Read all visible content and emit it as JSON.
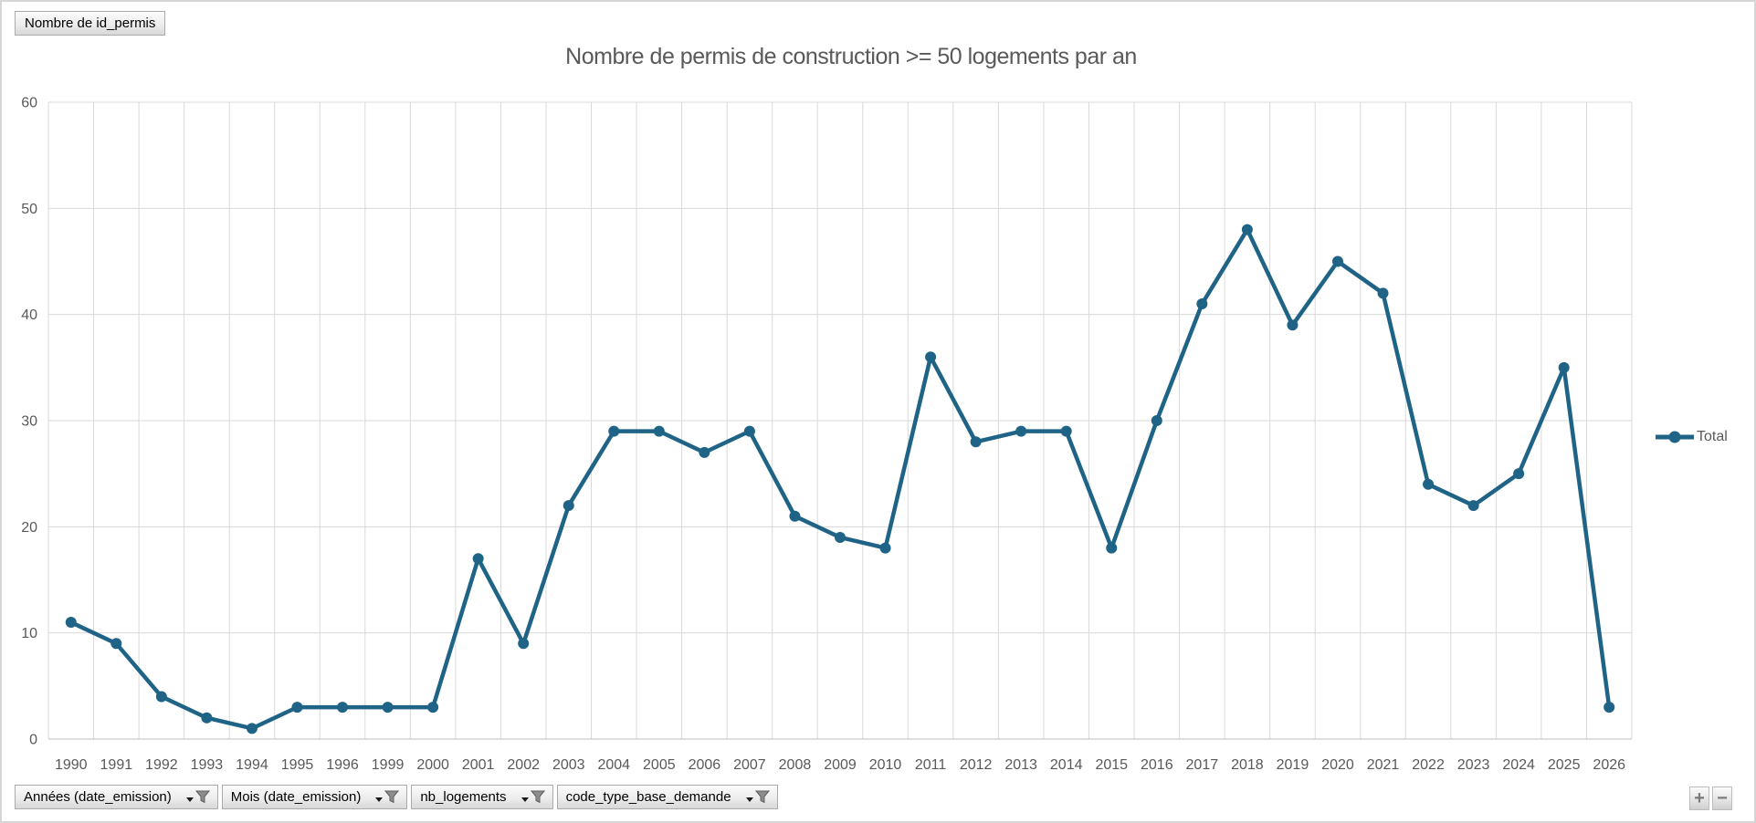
{
  "value_field_button": {
    "label": "Nombre de id_permis"
  },
  "chart": {
    "title": "Nombre de permis de construction >= 50 logements par an"
  },
  "legend": {
    "label": "Total"
  },
  "filter_buttons": [
    {
      "label": "Années (date_emission)",
      "icon": "filter-funnel"
    },
    {
      "label": "Mois (date_emission)",
      "icon": "filter-funnel"
    },
    {
      "label": "nb_logements",
      "icon": "filter-funnel"
    },
    {
      "label": "code_type_base_demande",
      "icon": "filter-funnel"
    }
  ],
  "zoom_controls": {
    "expand_label": "+",
    "collapse_label": "−"
  },
  "chart_data": {
    "type": "line",
    "title": "Nombre de permis de construction >= 50 logements par an",
    "categories": [
      "1990",
      "1991",
      "1992",
      "1993",
      "1994",
      "1995",
      "1996",
      "1999",
      "2000",
      "2001",
      "2002",
      "2003",
      "2004",
      "2005",
      "2006",
      "2007",
      "2008",
      "2009",
      "2010",
      "2011",
      "2012",
      "2013",
      "2014",
      "2015",
      "2016",
      "2017",
      "2018",
      "2019",
      "2020",
      "2021",
      "2022",
      "2023",
      "2024",
      "2025",
      "2026"
    ],
    "series": [
      {
        "name": "Total",
        "values": [
          11,
          9,
          4,
          2,
          1,
          3,
          3,
          3,
          3,
          17,
          9,
          22,
          29,
          29,
          27,
          29,
          21,
          19,
          18,
          36,
          28,
          29,
          29,
          18,
          30,
          41,
          48,
          39,
          45,
          42,
          24,
          22,
          25,
          35,
          3
        ]
      }
    ],
    "xlabel": "",
    "ylabel": "",
    "ylim": [
      0,
      60
    ],
    "ytick_interval": 10,
    "grid": true,
    "legend_position": "right",
    "colors": {
      "line": "#1F6386",
      "gridline": "#D9D9D9",
      "axis_line": "#BFBFBF",
      "tick_text": "#595959"
    }
  }
}
